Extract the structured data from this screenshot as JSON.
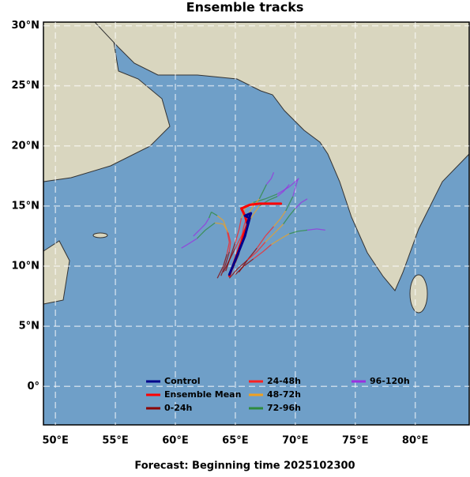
{
  "chart_data": {
    "type": "track-map",
    "title": "Ensemble tracks",
    "footer": "Forecast: Beginning time 2025102300",
    "xlim": [
      49,
      84.5
    ],
    "ylim": [
      -3.2,
      30.3
    ],
    "xticks": [
      {
        "value": 50,
        "label": "50°E"
      },
      {
        "value": 55,
        "label": "55°E"
      },
      {
        "value": 60,
        "label": "60°E"
      },
      {
        "value": 65,
        "label": "65°E"
      },
      {
        "value": 70,
        "label": "70°E"
      },
      {
        "value": 75,
        "label": "75°E"
      },
      {
        "value": 80,
        "label": "80°E"
      }
    ],
    "yticks": [
      {
        "value": 0,
        "label": "0°"
      },
      {
        "value": 5,
        "label": "5°N"
      },
      {
        "value": 10,
        "label": "10°N"
      },
      {
        "value": 15,
        "label": "15°N"
      },
      {
        "value": 20,
        "label": "20°N"
      },
      {
        "value": 25,
        "label": "25°N"
      },
      {
        "value": 30,
        "label": "30°N"
      }
    ],
    "grid": true,
    "series": [
      {
        "name": "Control",
        "color": "#00008b",
        "x": [
          64.5,
          65.2,
          65.8,
          66.2,
          65.8,
          66.3,
          66.0
        ],
        "y": [
          9.3,
          11.0,
          12.5,
          14.0,
          14.2,
          14.4,
          13.6
        ]
      },
      {
        "name": "Ensemble Mean",
        "color": "#ff0000",
        "x": [
          64.5,
          65.0,
          65.5,
          66.0,
          65.8,
          65.5,
          66.2,
          67.0,
          67.8,
          68.8
        ],
        "y": [
          9.2,
          10.6,
          12.0,
          13.5,
          14.2,
          14.8,
          15.1,
          15.2,
          15.2,
          15.2
        ]
      }
    ],
    "periods": [
      {
        "name": "0-24h",
        "color": "#8b0000"
      },
      {
        "name": "24-48h",
        "color": "#ff2020"
      },
      {
        "name": "48-72h",
        "color": "#f0a020"
      },
      {
        "name": "72-96h",
        "color": "#2e8b3e"
      },
      {
        "name": "96-120h",
        "color": "#9a30e0"
      }
    ],
    "members": [
      {
        "x": [
          64,
          64.5,
          65,
          65.5,
          66,
          66.5,
          67,
          67.8,
          68.5,
          69,
          69.5
        ],
        "y": [
          9.5,
          10.5,
          11.5,
          12.5,
          13.5,
          14.3,
          15,
          15.5,
          15.8,
          16.2,
          16.8
        ]
      },
      {
        "x": [
          63.5,
          64,
          64.3,
          64.5,
          64.3,
          64,
          63.5,
          63,
          62.8,
          62.5,
          61.5
        ],
        "y": [
          9,
          10,
          11,
          12,
          13,
          13.8,
          14.2,
          14.5,
          14,
          13.5,
          12.5
        ]
      },
      {
        "x": [
          65,
          65.7,
          66.5,
          67.3,
          68,
          68.8,
          69.5,
          70.2,
          71,
          71.8,
          72.5
        ],
        "y": [
          9.3,
          10,
          10.6,
          11.2,
          11.8,
          12.3,
          12.7,
          12.9,
          13,
          13.1,
          13
        ]
      },
      {
        "x": [
          64.2,
          64.6,
          65,
          65.3,
          65.5,
          65.8,
          66.5,
          67.5,
          68.5,
          69.5,
          70.3
        ],
        "y": [
          9.6,
          10.8,
          12,
          13,
          14,
          14.8,
          15.3,
          15.6,
          16,
          16.6,
          17.3
        ]
      },
      {
        "x": [
          63.8,
          64.2,
          64.5,
          64.6,
          64.4,
          64,
          63.3,
          62.5,
          61.8,
          61,
          60.5
        ],
        "y": [
          9.2,
          10.2,
          11.2,
          12,
          12.8,
          13.5,
          13.6,
          13,
          12.3,
          11.8,
          11.5
        ]
      },
      {
        "x": [
          65.3,
          66,
          66.8,
          67.5,
          68.2,
          68.8,
          69.2,
          69.5,
          69.8,
          70,
          70.2
        ],
        "y": [
          9.5,
          10.5,
          11.5,
          12.5,
          13.3,
          14,
          14.6,
          15.2,
          15.8,
          16.5,
          17.2
        ]
      },
      {
        "x": [
          64.8,
          65.3,
          65.5,
          65.7,
          66,
          66.5,
          67,
          67.3,
          67.6,
          68,
          68.2
        ],
        "y": [
          9.8,
          11,
          12.2,
          13.3,
          14.2,
          15,
          15.6,
          16.2,
          16.8,
          17.3,
          17.8
        ]
      },
      {
        "x": [
          64.5,
          65.2,
          66,
          66.8,
          67.5,
          68.3,
          69,
          69.5,
          70,
          70.5,
          71
        ],
        "y": [
          9,
          9.8,
          10.5,
          11.2,
          12,
          12.8,
          13.5,
          14.2,
          14.8,
          15.3,
          15.6
        ]
      }
    ]
  }
}
